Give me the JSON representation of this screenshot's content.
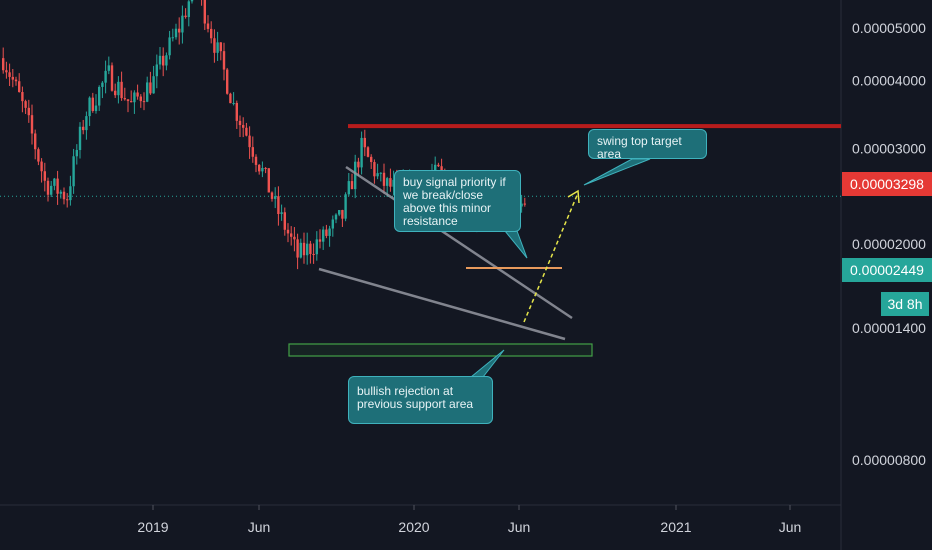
{
  "colors": {
    "background": "#131722",
    "grid": "#1c2030",
    "up": "#26a69a",
    "down": "#ef5350",
    "resistance_line": "#b71c1c",
    "current_price": "#26a69a",
    "support_box": "#2e7d32",
    "trendline": "#9598a1",
    "minor_resistance": "#e89a5c",
    "projection": "#e6e64a",
    "callout_bg": "#1e6f78",
    "axis_text": "#d1d4dc"
  },
  "chart_data": {
    "type": "candlestick",
    "y_scale": "log",
    "y_ticks": [
      "0.00000800",
      "0.00001400",
      "0.00002000",
      "0.00003000",
      "0.00004000",
      "0.00005000"
    ],
    "x_ticks": [
      "2019",
      "Jun",
      "2020",
      "Jun",
      "2021",
      "Jun"
    ],
    "grid": false,
    "levels": {
      "resistance": 3.298e-05,
      "current_price": 2.449e-05
    },
    "price_labels": {
      "resistance": "0.00003298",
      "current": "0.00002449",
      "countdown": "3d 8h"
    },
    "annotations": {
      "swing_target": "swing top target area",
      "buy_signal": "buy signal priority if we break/close above this minor resistance",
      "bullish_rejection": "bullish rejection at previous support area"
    }
  }
}
